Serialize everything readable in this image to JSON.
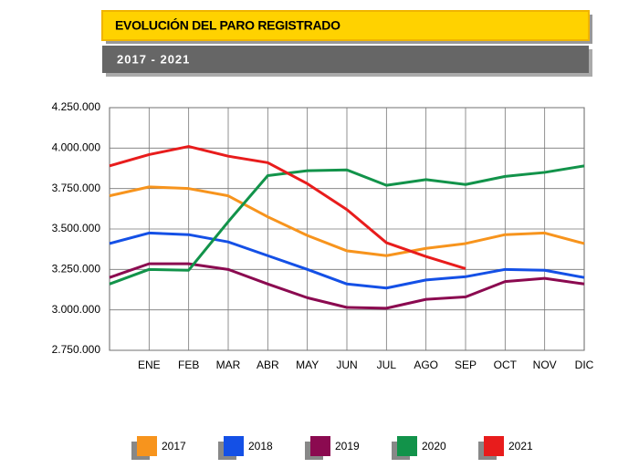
{
  "chart_data": {
    "type": "line",
    "title": "EVOLUCIÓN DEL PARO REGISTRADO",
    "subtitle": "2017 - 2021",
    "categories": [
      null,
      "ENE",
      "FEB",
      "MAR",
      "ABR",
      "MAY",
      "JUN",
      "JUL",
      "AGO",
      "SEP",
      "OCT",
      "NOV",
      "DIC"
    ],
    "series": [
      {
        "name": "2017",
        "color": "#f7941d",
        "values": [
          3705000,
          3760000,
          3750000,
          3705000,
          3575000,
          3460000,
          3365000,
          3335000,
          3380000,
          3410000,
          3465000,
          3475000,
          3410000
        ]
      },
      {
        "name": "2018",
        "color": "#1450e6",
        "values": [
          3410000,
          3475000,
          3465000,
          3420000,
          3335000,
          3250000,
          3160000,
          3135000,
          3185000,
          3205000,
          3250000,
          3245000,
          3200000
        ]
      },
      {
        "name": "2019",
        "color": "#8b0a50",
        "values": [
          3200000,
          3285000,
          3285000,
          3250000,
          3160000,
          3075000,
          3015000,
          3010000,
          3065000,
          3080000,
          3175000,
          3195000,
          3160000
        ]
      },
      {
        "name": "2020",
        "color": "#12934a",
        "values": [
          3160000,
          3250000,
          3245000,
          3545000,
          3830000,
          3860000,
          3865000,
          3770000,
          3805000,
          3775000,
          3825000,
          3850000,
          3890000
        ]
      },
      {
        "name": "2021",
        "color": "#e81c1c",
        "values": [
          3890000,
          3960000,
          4010000,
          3950000,
          3910000,
          3780000,
          3620000,
          3415000,
          3330000,
          3255000,
          null,
          null,
          null
        ]
      }
    ],
    "ylim": [
      2750000,
      4250000
    ],
    "yticks": [
      {
        "value": 2750000,
        "label": "2.750.000"
      },
      {
        "value": 3000000,
        "label": "3.000.000"
      },
      {
        "value": 3250000,
        "label": "3.250.000"
      },
      {
        "value": 3500000,
        "label": "3.500.000"
      },
      {
        "value": 3750000,
        "label": "3.750.000"
      },
      {
        "value": 4000000,
        "label": "4.000.000"
      },
      {
        "value": 4250000,
        "label": "4.250.000"
      }
    ],
    "grid": true
  }
}
